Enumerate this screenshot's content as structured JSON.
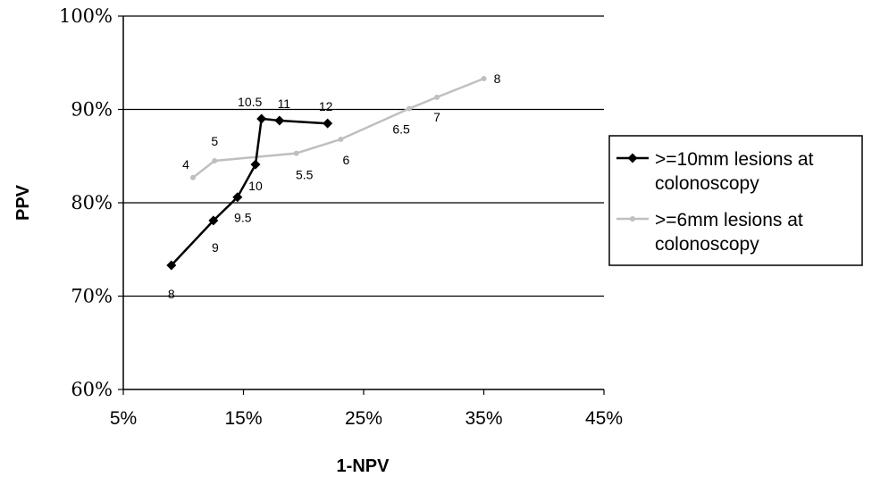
{
  "chart_data": {
    "type": "line",
    "title": "",
    "xlabel": "1-NPV",
    "ylabel": "PPV",
    "xlim": [
      5,
      45
    ],
    "ylim": [
      60,
      100
    ],
    "x_ticks": [
      "5%",
      "15%",
      "25%",
      "35%",
      "45%"
    ],
    "y_ticks": [
      "60%",
      "70%",
      "80%",
      "90%",
      "100%"
    ],
    "grid": "horizontal",
    "legend_position": "right",
    "series": [
      {
        "name": ">=10mm lesions at colonoscopy",
        "color": "#000000",
        "marker": "diamond",
        "x": [
          9.0,
          12.5,
          14.5,
          16.0,
          16.5,
          18.0,
          22.0
        ],
        "y": [
          73.3,
          78.1,
          80.6,
          84.1,
          89.0,
          88.8,
          88.5
        ],
        "labels": [
          "8",
          "9",
          "9.5",
          "10",
          "10.5",
          "11",
          "12"
        ]
      },
      {
        "name": ">=6mm lesions at colonoscopy",
        "color": "#bfbfbf",
        "marker": "circle",
        "x": [
          10.8,
          12.6,
          19.4,
          23.1,
          28.8,
          31.1,
          35.0
        ],
        "y": [
          82.7,
          84.5,
          85.3,
          86.8,
          90.1,
          91.3,
          93.3
        ],
        "labels": [
          "4",
          "5",
          "5.5",
          "6",
          "6.5",
          "7",
          "8"
        ]
      }
    ]
  }
}
